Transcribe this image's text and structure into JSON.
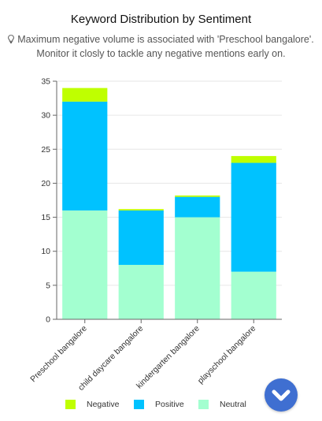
{
  "title": "Keyword Distribution by Sentiment",
  "insight": "Maximum negative volume is associated with 'Preschool bangalore'. Monitor it closly to tackle any negative mentions early on.",
  "icons": {
    "insight": "lightbulb-icon",
    "scroll": "chevron-down-icon"
  },
  "colors": {
    "negative": "#bfff00",
    "positive": "#00c2ff",
    "neutral": "#a3ffd0",
    "scroll_button": "#3f6fd1"
  },
  "chart_data": {
    "type": "bar",
    "stacked": true,
    "categories": [
      "Preschool bangalore",
      "child daycare bangalore",
      "kindergarten bangalore",
      "playschool bangalore"
    ],
    "series": [
      {
        "name": "Neutral",
        "values": [
          16,
          8,
          15,
          7
        ]
      },
      {
        "name": "Positive",
        "values": [
          16,
          8,
          3,
          16
        ]
      },
      {
        "name": "Negative",
        "values": [
          2,
          0.2,
          0.2,
          1
        ]
      }
    ],
    "ylim": [
      0,
      35
    ],
    "yticks": [
      0,
      5,
      10,
      15,
      20,
      25,
      30,
      35
    ],
    "grid": true,
    "legend_position": "bottom"
  },
  "legend": [
    {
      "key": "negative",
      "label": "Negative"
    },
    {
      "key": "positive",
      "label": "Positive"
    },
    {
      "key": "neutral",
      "label": "Neutral"
    }
  ]
}
